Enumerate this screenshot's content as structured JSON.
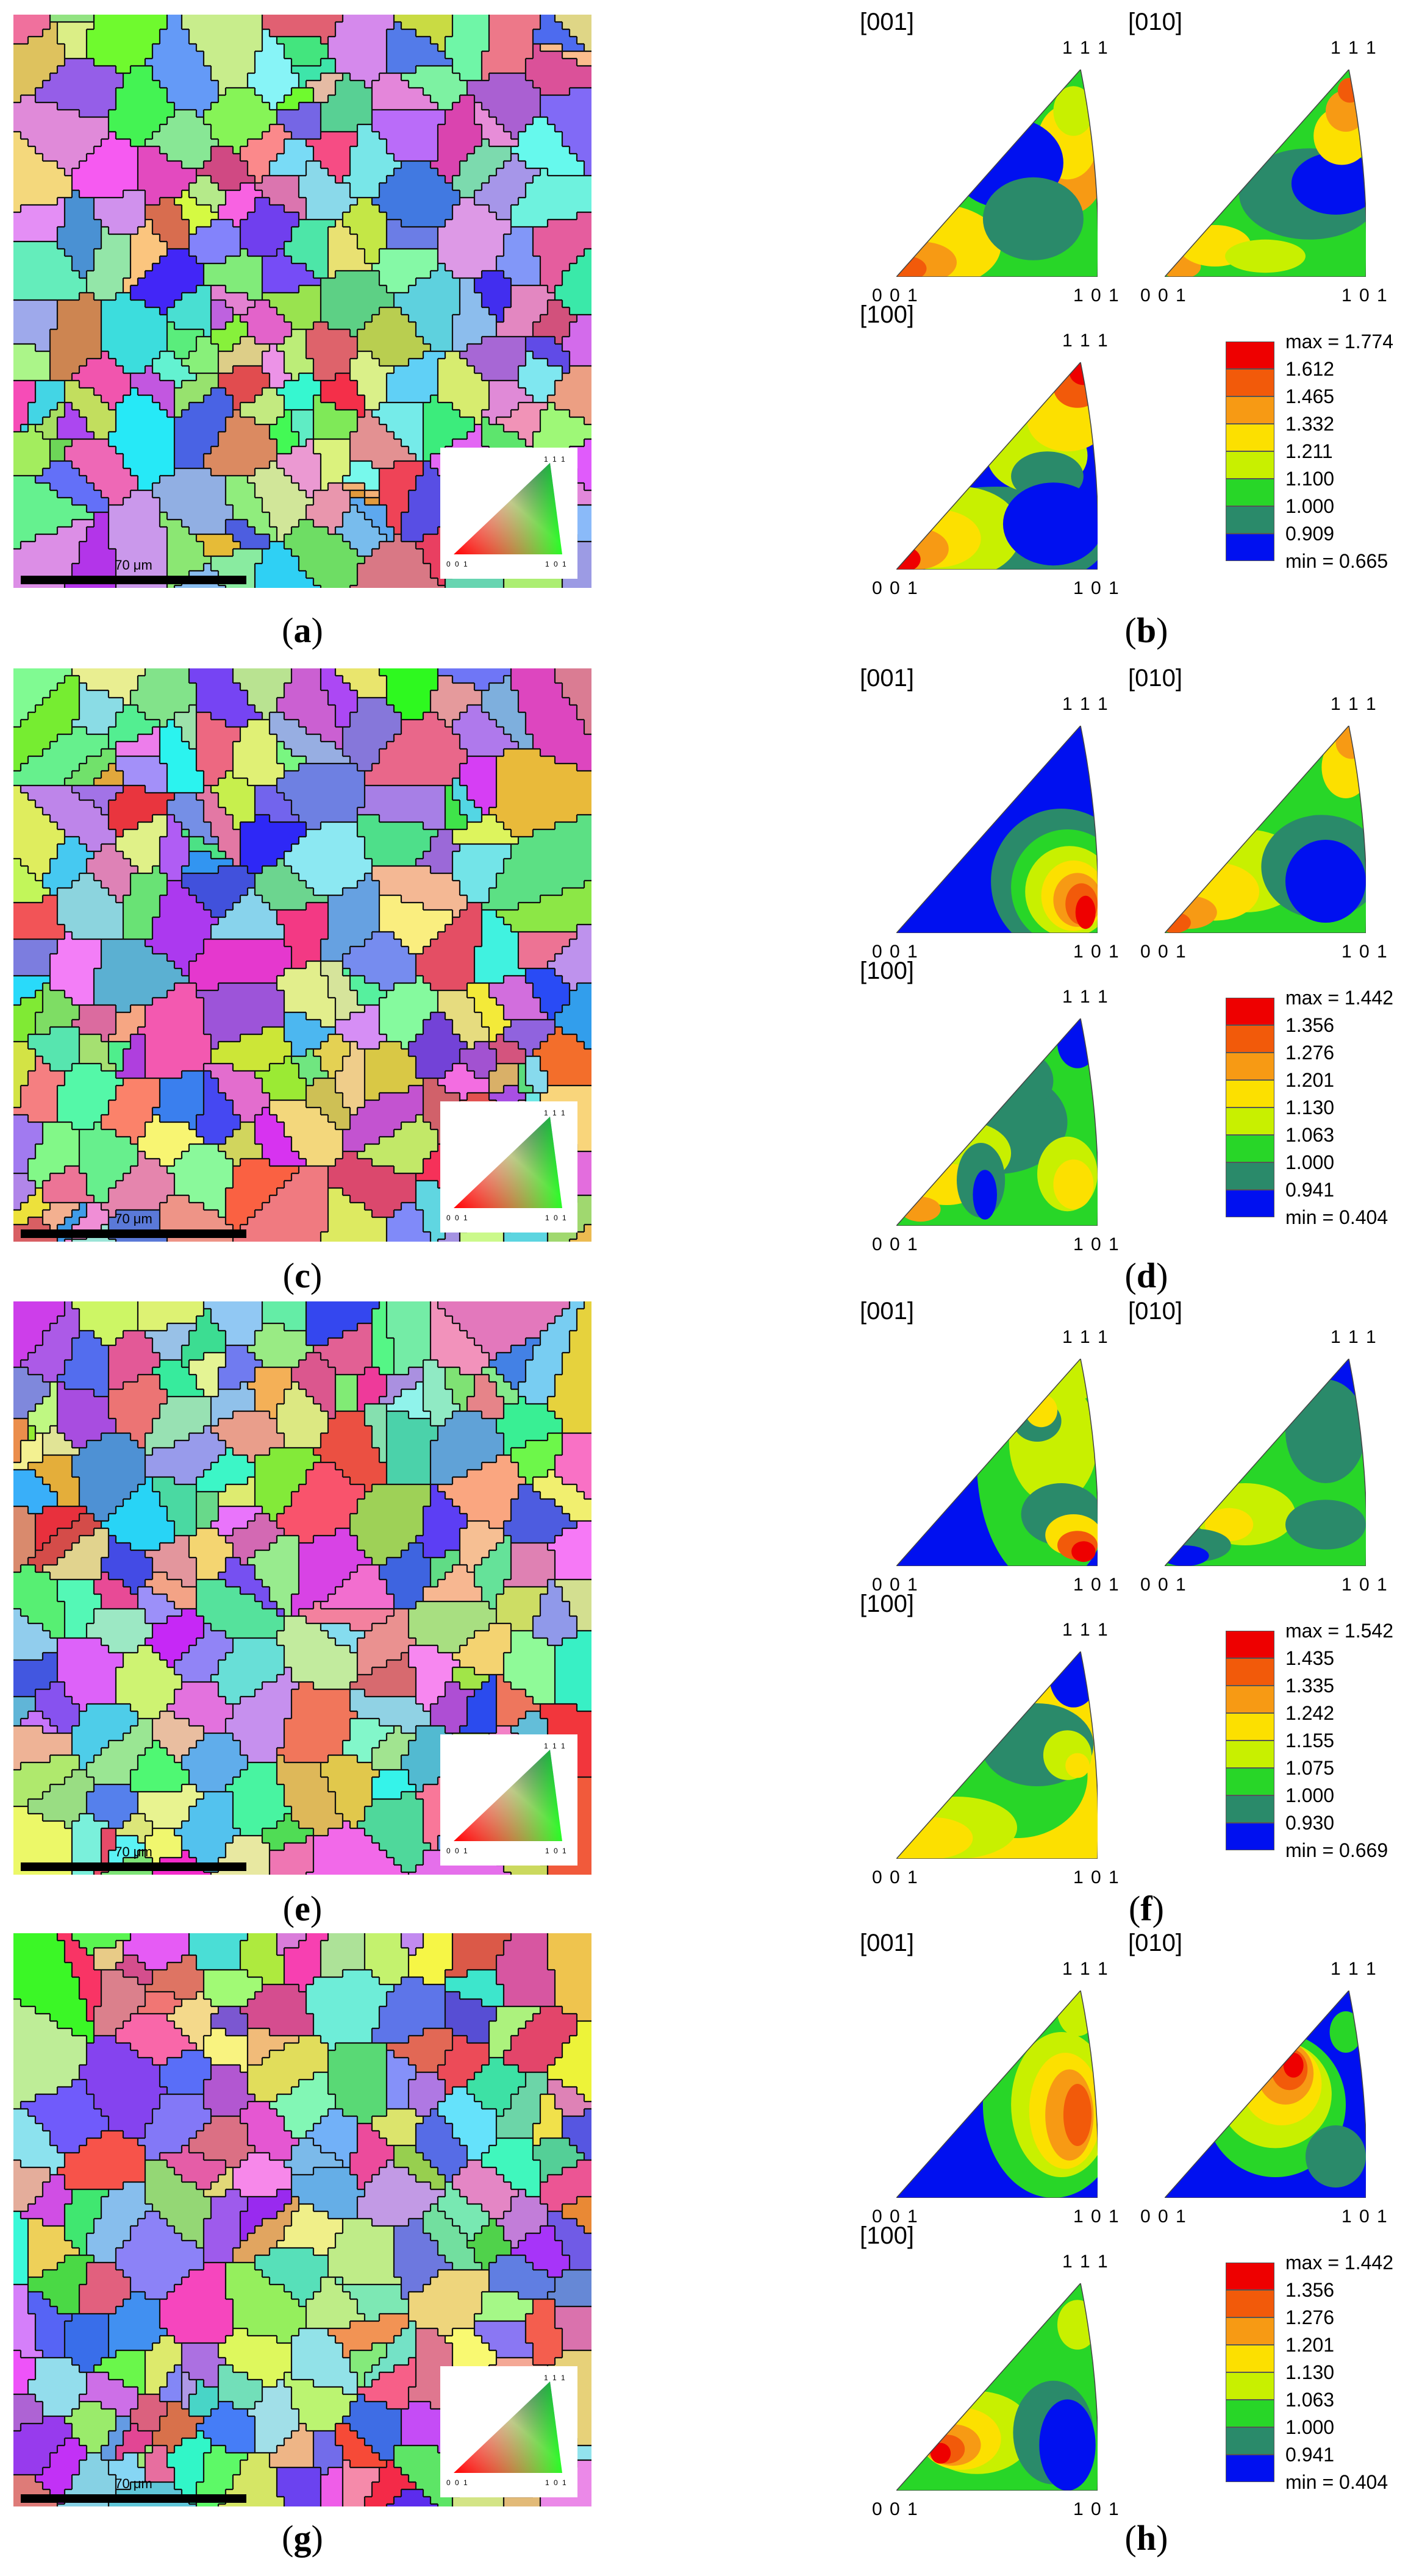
{
  "panels": {
    "a": {
      "label": "a"
    },
    "b": {
      "label": "b"
    },
    "c": {
      "label": "c"
    },
    "d": {
      "label": "d"
    },
    "e": {
      "label": "e"
    },
    "f": {
      "label": "f"
    },
    "g": {
      "label": "g"
    },
    "h": {
      "label": "h"
    }
  },
  "ebsd": {
    "scale_text": "70 μm",
    "key_labels": {
      "top": "1 1 1",
      "left": "0 0 1",
      "right": "1 0 1"
    }
  },
  "pole_figures": {
    "directions": [
      "[001]",
      "[010]",
      "[100]"
    ],
    "corner_labels": {
      "top": "1 1 1",
      "left": "0 0 1",
      "right": "1 0 1"
    }
  },
  "legends": {
    "b": [
      "max = 1.774",
      "1.612",
      "1.465",
      "1.332",
      "1.211",
      "1.100",
      "1.000",
      "0.909",
      "min = 0.665"
    ],
    "d": [
      "max = 1.442",
      "1.356",
      "1.276",
      "1.201",
      "1.130",
      "1.063",
      "1.000",
      "0.941",
      "min = 0.404"
    ],
    "f": [
      "max = 1.542",
      "1.435",
      "1.335",
      "1.242",
      "1.155",
      "1.075",
      "1.000",
      "0.930",
      "min = 0.669"
    ],
    "h": [
      "max = 1.442",
      "1.356",
      "1.276",
      "1.201",
      "1.130",
      "1.063",
      "1.000",
      "0.941",
      "min = 0.404"
    ]
  },
  "colors": {
    "levels": [
      "#ee0000",
      "#f25a0a",
      "#f79a14",
      "#fce000",
      "#c8f000",
      "#28d628",
      "#2a8a6a",
      "#0010f0"
    ]
  }
}
